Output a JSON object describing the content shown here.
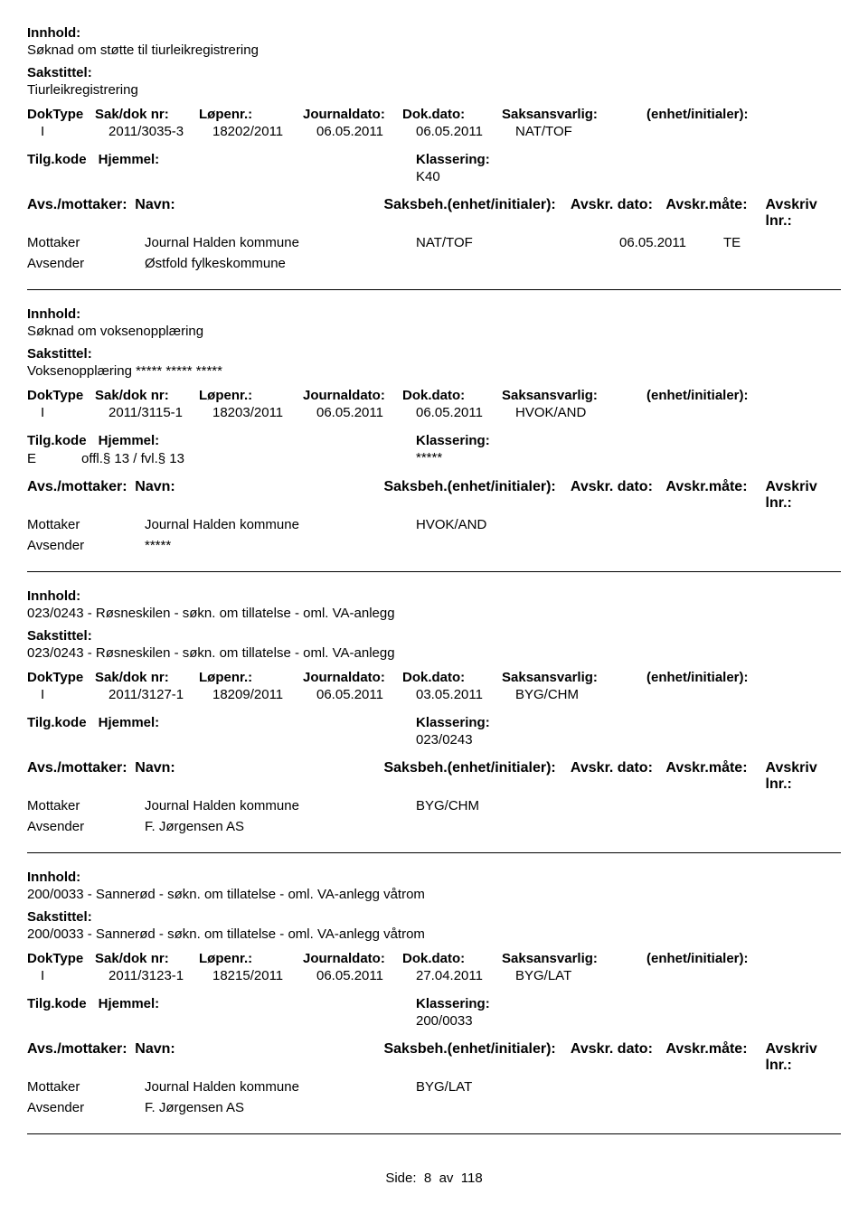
{
  "labels": {
    "innhold": "Innhold:",
    "sakstittel": "Sakstittel:",
    "doktype": "DokType",
    "sakdoknr": "Sak/dok nr:",
    "lopnr": "Løpenr.:",
    "journaldato": "Journaldato:",
    "dokdato": "Dok.dato:",
    "saksansvarlig": "Saksansvarlig:",
    "enhet": "(enhet/initialer):",
    "tilgkode": "Tilg.kode",
    "hjemmel": "Hjemmel:",
    "klassering": "Klassering:",
    "avsmottaker": "Avs./mottaker:",
    "navn": "Navn:",
    "saksbeh": "Saksbeh.(enhet/initialer):",
    "avskrdato": "Avskr. dato:",
    "avskrmate": "Avskr.måte:",
    "avskrlnr": "Avskriv lnr.:",
    "side": "Side:",
    "av": "av"
  },
  "footer": {
    "page": "8",
    "total": "118"
  },
  "records": [
    {
      "innhold": "Søknad om støtte til tiurleikregistrering",
      "sakstittel": "Tiurleikregistrering",
      "doktype": "I",
      "sakdoknr": "2011/3035-3",
      "lopnr": "18202/2011",
      "journaldato": "06.05.2011",
      "dokdato": "06.05.2011",
      "saksansvarlig": "NAT/TOF",
      "tilgkode": "",
      "hjemmel": "",
      "klassering": "K40",
      "parties": [
        {
          "role": "Mottaker",
          "name": "Journal Halden kommune",
          "saksbeh": "NAT/TOF",
          "avskrdato": "06.05.2011",
          "avskrmate": "TE"
        },
        {
          "role": "Avsender",
          "name": "Østfold fylkeskommune",
          "saksbeh": "",
          "avskrdato": "",
          "avskrmate": ""
        }
      ]
    },
    {
      "innhold": "Søknad om voksenopplæring",
      "sakstittel": "Voksenopplæring ***** ***** *****",
      "doktype": "I",
      "sakdoknr": "2011/3115-1",
      "lopnr": "18203/2011",
      "journaldato": "06.05.2011",
      "dokdato": "06.05.2011",
      "saksansvarlig": "HVOK/AND",
      "tilgkode": "E",
      "hjemmel": "offl.§ 13 / fvl.§ 13",
      "klassering": "*****",
      "parties": [
        {
          "role": "Mottaker",
          "name": "Journal Halden kommune",
          "saksbeh": "HVOK/AND",
          "avskrdato": "",
          "avskrmate": ""
        },
        {
          "role": "Avsender",
          "name": "*****",
          "saksbeh": "",
          "avskrdato": "",
          "avskrmate": ""
        }
      ]
    },
    {
      "innhold": "023/0243 - Røsneskilen - søkn. om tillatelse - oml. VA-anlegg",
      "sakstittel": "023/0243 - Røsneskilen - søkn. om tillatelse - oml. VA-anlegg",
      "doktype": "I",
      "sakdoknr": "2011/3127-1",
      "lopnr": "18209/2011",
      "journaldato": "06.05.2011",
      "dokdato": "03.05.2011",
      "saksansvarlig": "BYG/CHM",
      "tilgkode": "",
      "hjemmel": "",
      "klassering": "023/0243",
      "parties": [
        {
          "role": "Mottaker",
          "name": "Journal Halden kommune",
          "saksbeh": "BYG/CHM",
          "avskrdato": "",
          "avskrmate": ""
        },
        {
          "role": "Avsender",
          "name": "F. Jørgensen AS",
          "saksbeh": "",
          "avskrdato": "",
          "avskrmate": ""
        }
      ]
    },
    {
      "innhold": "200/0033 - Sannerød - søkn. om tillatelse - oml. VA-anlegg våtrom",
      "sakstittel": "200/0033 - Sannerød - søkn. om tillatelse - oml. VA-anlegg våtrom",
      "doktype": "I",
      "sakdoknr": "2011/3123-1",
      "lopnr": "18215/2011",
      "journaldato": "06.05.2011",
      "dokdato": "27.04.2011",
      "saksansvarlig": "BYG/LAT",
      "tilgkode": "",
      "hjemmel": "",
      "klassering": "200/0033",
      "parties": [
        {
          "role": "Mottaker",
          "name": "Journal Halden kommune",
          "saksbeh": "BYG/LAT",
          "avskrdato": "",
          "avskrmate": ""
        },
        {
          "role": "Avsender",
          "name": "F. Jørgensen AS",
          "saksbeh": "",
          "avskrdato": "",
          "avskrmate": ""
        }
      ]
    }
  ]
}
